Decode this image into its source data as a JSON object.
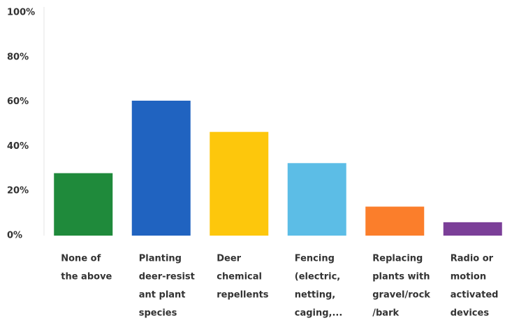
{
  "chart_data": {
    "type": "bar",
    "categories": [
      [
        "None of",
        "the above"
      ],
      [
        "Planting",
        "deer-resist",
        "ant plant",
        "species"
      ],
      [
        "Deer",
        "chemical",
        "repellents"
      ],
      [
        "Fencing",
        "(electric,",
        "netting,",
        "caging,..."
      ],
      [
        "Replacing",
        "plants with",
        "gravel/rock",
        "/bark"
      ],
      [
        "Radio or",
        "motion",
        "activated",
        "devices"
      ]
    ],
    "values": [
      28,
      60.5,
      46.5,
      32.5,
      13,
      6
    ],
    "colors": [
      "#1f8a3b",
      "#2063c0",
      "#fdc70c",
      "#5cbde6",
      "#fb7e2b",
      "#7b3f98"
    ],
    "ylim": [
      0,
      100
    ],
    "yticks": [
      {
        "value": 0,
        "label": "0%"
      },
      {
        "value": 20,
        "label": "20%"
      },
      {
        "value": 40,
        "label": "40%"
      },
      {
        "value": 60,
        "label": "60%"
      },
      {
        "value": 80,
        "label": "80%"
      },
      {
        "value": 100,
        "label": "100%"
      }
    ],
    "grid": false
  }
}
